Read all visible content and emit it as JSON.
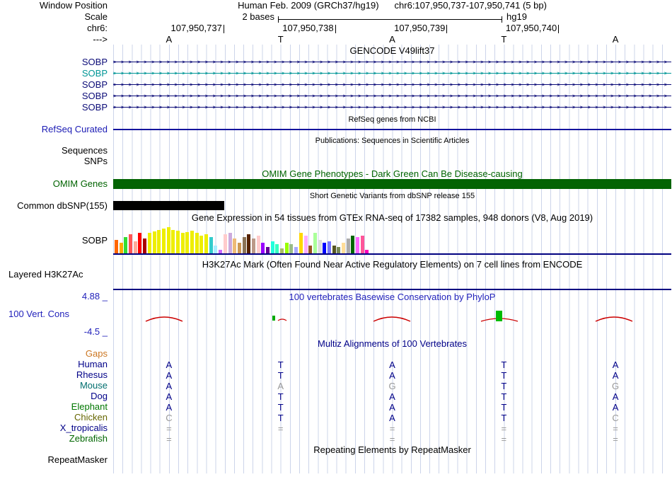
{
  "colors": {
    "grid_line": "#ccd4ea",
    "track_separator": "#000080",
    "omim_bar": "#046404",
    "dbsnp_bar": "#000000",
    "phylop_positive": "#00AA00",
    "phylop_negative": "#CC0000",
    "match_base": "#000088",
    "mismatch_base": "#999999"
  },
  "window": {
    "assembly_line": "Human Feb. 2009 (GRCh37/hg19)",
    "position_line": "chr6:107,950,737-107,950,741 (5 bp)"
  },
  "left_labels": {
    "window_position": "Window Position",
    "scale": "Scale",
    "chrom": "chr6:",
    "strand": "--->"
  },
  "ruler": {
    "scale_text": "2 bases",
    "assembly": "hg19",
    "tick_labels": [
      "107,950,737",
      "107,950,738",
      "107,950,739",
      "107,950,740"
    ],
    "bases": [
      "A",
      "T",
      "A",
      "T",
      "A"
    ]
  },
  "gencode": {
    "header": "GENCODE V49lift37",
    "transcripts": [
      {
        "label": "SOBP",
        "color": "#0c0c78"
      },
      {
        "label": "SOBP",
        "color": "#009696"
      },
      {
        "label": "SOBP",
        "color": "#0c0c78"
      },
      {
        "label": "SOBP",
        "color": "#0c0c78"
      },
      {
        "label": "SOBP",
        "color": "#0c0c78"
      }
    ]
  },
  "refseq": {
    "header": "RefSeq genes from NCBI",
    "label": "RefSeq Curated"
  },
  "publications": {
    "header": "Publications: Sequences in Scientific Articles",
    "sequences_label": "Sequences",
    "snps_label": "SNPs"
  },
  "omim": {
    "header": "OMIM Gene Phenotypes - Dark Green Can Be Disease-causing",
    "label": "OMIM Genes"
  },
  "dbsnp": {
    "header": "Short Genetic Variants from dbSNP release 155",
    "label": "Common dbSNP(155)"
  },
  "gtex": {
    "header": "Gene Expression in 54 tissues from GTEx RNA-seq of 17382 samples, 948 donors (V8, Aug 2019)",
    "label": "SOBP",
    "bars": [
      {
        "c": "#FF6600",
        "h": 20
      },
      {
        "c": "#FFAA00",
        "h": 16
      },
      {
        "c": "#33DD33",
        "h": 24
      },
      {
        "c": "#FF5555",
        "h": 28
      },
      {
        "c": "#FFAA99",
        "h": 18
      },
      {
        "c": "#FF0000",
        "h": 30
      },
      {
        "c": "#AA0000",
        "h": 22
      },
      {
        "c": "#EEEE00",
        "h": 30
      },
      {
        "c": "#EEEE00",
        "h": 32
      },
      {
        "c": "#EEEE00",
        "h": 34
      },
      {
        "c": "#EEEE00",
        "h": 36
      },
      {
        "c": "#EEEE00",
        "h": 38
      },
      {
        "c": "#EEEE00",
        "h": 34
      },
      {
        "c": "#EEEE00",
        "h": 33
      },
      {
        "c": "#EEEE00",
        "h": 30
      },
      {
        "c": "#EEEE00",
        "h": 31
      },
      {
        "c": "#EEEE00",
        "h": 33
      },
      {
        "c": "#EEEE00",
        "h": 30
      },
      {
        "c": "#EEEE00",
        "h": 26
      },
      {
        "c": "#EEEE00",
        "h": 28
      },
      {
        "c": "#33CCCC",
        "h": 24
      },
      {
        "c": "#AAEEFF",
        "h": 12
      },
      {
        "c": "#CC66FF",
        "h": 6
      },
      {
        "c": "#FFCCCC",
        "h": 28
      },
      {
        "c": "#CCAADD",
        "h": 30
      },
      {
        "c": "#EEBB77",
        "h": 22
      },
      {
        "c": "#CC9955",
        "h": 16
      },
      {
        "c": "#8B7355",
        "h": 24
      },
      {
        "c": "#552200",
        "h": 28
      },
      {
        "c": "#BB9988",
        "h": 22
      },
      {
        "c": "#FFCCCC",
        "h": 26
      },
      {
        "c": "#9900FF",
        "h": 16
      },
      {
        "c": "#660099",
        "h": 10
      },
      {
        "c": "#22FFDD",
        "h": 18
      },
      {
        "c": "#33FFC0",
        "h": 14
      },
      {
        "c": "#AABB66",
        "h": 8
      },
      {
        "c": "#99FF00",
        "h": 16
      },
      {
        "c": "#99BB88",
        "h": 14
      },
      {
        "c": "#AAAAFF",
        "h": 10
      },
      {
        "c": "#FFD700",
        "h": 30
      },
      {
        "c": "#FFAAFF",
        "h": 26
      },
      {
        "c": "#995522",
        "h": 12
      },
      {
        "c": "#AAFF99",
        "h": 30
      },
      {
        "c": "#DDDDDD",
        "h": 20
      },
      {
        "c": "#0000FF",
        "h": 16
      },
      {
        "c": "#7777FF",
        "h": 18
      },
      {
        "c": "#555522",
        "h": 12
      },
      {
        "c": "#778855",
        "h": 10
      },
      {
        "c": "#FFDD99",
        "h": 16
      },
      {
        "c": "#AAAAAA",
        "h": 22
      },
      {
        "c": "#006600",
        "h": 26
      },
      {
        "c": "#FF66FF",
        "h": 24
      },
      {
        "c": "#FF5599",
        "h": 26
      },
      {
        "c": "#FF00BB",
        "h": 6
      }
    ]
  },
  "h3k27ac": {
    "header": "H3K27Ac Mark (Often Found Near Active Regulatory Elements) on 7 cell lines from ENCODE",
    "label": "Layered H3K27Ac"
  },
  "phylop": {
    "header": "100 vertebrates Basewise Conservation by PhyloP",
    "label": "100 Vert. Cons",
    "axis_max": "4.88 _",
    "axis_min": "-4.5 _"
  },
  "multiz": {
    "header": "Multiz Alignments of 100 Vertebrates",
    "rows": [
      {
        "species": "Gaps",
        "label_color": "#CC7722",
        "cells": [
          "",
          "",
          "",
          "",
          ""
        ],
        "dim": [
          false,
          false,
          false,
          false,
          false
        ]
      },
      {
        "species": "Human",
        "label_color": "#000088",
        "cells": [
          "A",
          "T",
          "A",
          "T",
          "A"
        ],
        "dim": [
          false,
          false,
          false,
          false,
          false
        ]
      },
      {
        "species": "Rhesus",
        "label_color": "#000088",
        "cells": [
          "A",
          "T",
          "A",
          "T",
          "A"
        ],
        "dim": [
          false,
          false,
          false,
          false,
          false
        ]
      },
      {
        "species": "Mouse",
        "label_color": "#006E6E",
        "cells": [
          "A",
          "A",
          "G",
          "T",
          "G"
        ],
        "dim": [
          false,
          true,
          true,
          false,
          true
        ]
      },
      {
        "species": "Dog",
        "label_color": "#000088",
        "cells": [
          "A",
          "T",
          "A",
          "T",
          "A"
        ],
        "dim": [
          false,
          false,
          false,
          false,
          false
        ]
      },
      {
        "species": "Elephant",
        "label_color": "#007700",
        "cells": [
          "A",
          "T",
          "A",
          "T",
          "A"
        ],
        "dim": [
          false,
          false,
          false,
          false,
          false
        ]
      },
      {
        "species": "Chicken",
        "label_color": "#666600",
        "cells": [
          "C",
          "T",
          "A",
          "T",
          "C"
        ],
        "dim": [
          true,
          false,
          false,
          false,
          true
        ]
      },
      {
        "species": "X_tropicalis",
        "label_color": "#000088",
        "cells": [
          "=",
          "=",
          "=",
          "=",
          "="
        ],
        "dim": [
          true,
          true,
          true,
          true,
          true
        ]
      },
      {
        "species": "Zebrafish",
        "label_color": "#006600",
        "cells": [
          "=",
          "",
          "=",
          "=",
          "="
        ],
        "dim": [
          true,
          true,
          true,
          true,
          true
        ]
      }
    ]
  },
  "repeatmasker": {
    "header": "Repeating Elements by RepeatMasker",
    "label": "RepeatMasker"
  }
}
